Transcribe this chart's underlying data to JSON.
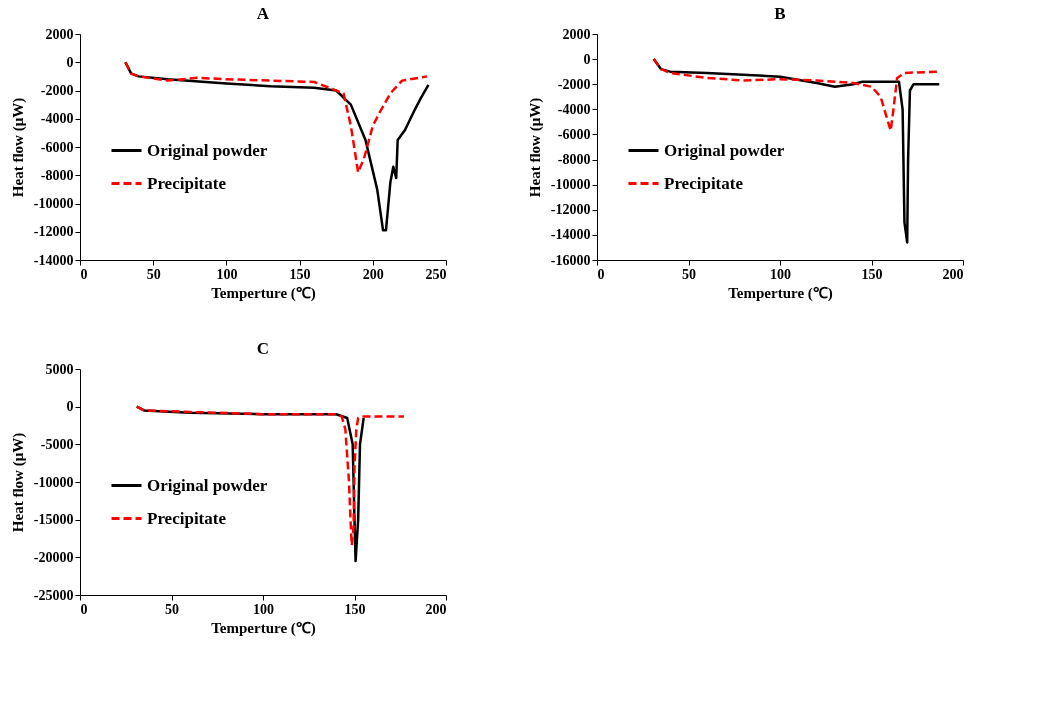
{
  "chart_data": [
    {
      "type": "line",
      "title": "A",
      "xlabel": "Temperture (℃)",
      "ylabel": "Heat flow (μW)",
      "xlim": [
        0,
        250
      ],
      "xticks": [
        0,
        50,
        100,
        150,
        200,
        250
      ],
      "ylim": [
        -14000,
        2000
      ],
      "yticks": [
        -14000,
        -12000,
        -10000,
        -8000,
        -6000,
        -4000,
        -2000,
        0,
        2000
      ],
      "grid": false,
      "legend": "left",
      "series": [
        {
          "name": "Original powder",
          "color": "#000000",
          "line_style": "solid",
          "x": [
            31,
            35,
            40,
            60,
            100,
            130,
            160,
            175,
            185,
            195,
            203,
            207,
            209,
            212,
            214,
            216,
            217,
            222,
            228,
            233,
            238
          ],
          "values": [
            0,
            -800,
            -1000,
            -1200,
            -1500,
            -1700,
            -1800,
            -2000,
            -3000,
            -5500,
            -9000,
            -11900,
            -11900,
            -8500,
            -7400,
            -8200,
            -5500,
            -4800,
            -3500,
            -2500,
            -1600
          ]
        },
        {
          "name": "Precipitate",
          "color": "#ff0000",
          "line_style": "dashed",
          "x": [
            31,
            35,
            40,
            60,
            80,
            100,
            130,
            160,
            180,
            185,
            190,
            194,
            200,
            205,
            212,
            220,
            237
          ],
          "values": [
            0,
            -800,
            -1000,
            -1300,
            -1100,
            -1200,
            -1300,
            -1400,
            -2200,
            -4500,
            -7800,
            -6800,
            -4500,
            -3500,
            -2200,
            -1300,
            -1000
          ]
        }
      ]
    },
    {
      "type": "line",
      "title": "B",
      "xlabel": "Temperture (℃)",
      "ylabel": "Heat flow (μW)",
      "xlim": [
        0,
        200
      ],
      "xticks": [
        0,
        50,
        100,
        150,
        200
      ],
      "ylim": [
        -16000,
        2000
      ],
      "yticks": [
        -16000,
        -14000,
        -12000,
        -10000,
        -8000,
        -6000,
        -4000,
        -2000,
        0,
        2000
      ],
      "grid": false,
      "legend": "left",
      "series": [
        {
          "name": "Original powder",
          "color": "#000000",
          "line_style": "solid",
          "x": [
            31,
            35,
            40,
            60,
            100,
            120,
            130,
            140,
            145,
            165,
            167,
            168,
            169.5,
            170,
            171,
            173,
            187
          ],
          "values": [
            0,
            -800,
            -1000,
            -1100,
            -1400,
            -1900,
            -2200,
            -2000,
            -1800,
            -1800,
            -4000,
            -13000,
            -14600,
            -8000,
            -2500,
            -2000,
            -2000
          ]
        },
        {
          "name": "Precipitate",
          "color": "#ff0000",
          "line_style": "dashed",
          "x": [
            31,
            35,
            40,
            60,
            80,
            100,
            120,
            140,
            150,
            155,
            158,
            160.5,
            162,
            164,
            168,
            187
          ],
          "values": [
            0,
            -800,
            -1100,
            -1500,
            -1700,
            -1600,
            -1700,
            -1900,
            -2200,
            -3000,
            -4500,
            -5700,
            -4000,
            -1500,
            -1100,
            -1000
          ]
        }
      ]
    },
    {
      "type": "line",
      "title": "C",
      "xlabel": "Temperture (℃)",
      "ylabel": "Heat flow (μW)",
      "xlim": [
        0,
        200
      ],
      "xticks": [
        0,
        50,
        100,
        150,
        200
      ],
      "ylim": [
        -25000,
        5000
      ],
      "yticks": [
        -25000,
        -20000,
        -15000,
        -10000,
        -5000,
        0,
        5000
      ],
      "grid": false,
      "legend": "left",
      "series": [
        {
          "name": "Original powder",
          "color": "#000000",
          "line_style": "solid",
          "x": [
            31,
            35,
            60,
            100,
            140,
            146,
            149,
            150,
            150.6,
            152,
            153,
            155
          ],
          "values": [
            0,
            -500,
            -800,
            -1000,
            -1000,
            -1500,
            -5000,
            -15000,
            -20500,
            -15000,
            -5000,
            -1500
          ]
        },
        {
          "name": "Precipitate",
          "color": "#ff0000",
          "line_style": "dashed",
          "x": [
            31,
            35,
            60,
            100,
            140,
            143,
            145,
            147,
            148,
            148.5,
            149.5,
            150,
            151,
            152,
            155,
            177
          ],
          "values": [
            0,
            -500,
            -700,
            -1000,
            -1000,
            -1300,
            -3000,
            -10000,
            -16000,
            -18400,
            -16000,
            -8000,
            -3000,
            -1500,
            -1300,
            -1300
          ]
        }
      ]
    }
  ]
}
